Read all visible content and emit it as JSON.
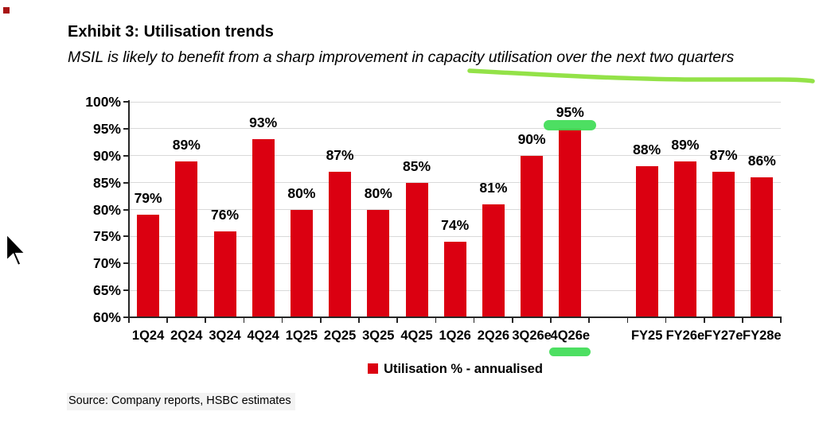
{
  "header": {
    "title": "Exhibit 3: Utilisation trends",
    "subtitle": "MSIL is likely to benefit from a sharp improvement in capacity utilisation over the next two quarters"
  },
  "chart_data": {
    "type": "bar",
    "title": "Exhibit 3: Utilisation trends",
    "subtitle": "MSIL is likely to benefit from a sharp improvement in capacity utilisation over the next two quarters",
    "categories": [
      "1Q24",
      "2Q24",
      "3Q24",
      "4Q24",
      "1Q25",
      "2Q25",
      "3Q25",
      "4Q25",
      "1Q26",
      "2Q26",
      "3Q26e",
      "4Q26e",
      "FY25",
      "FY26e",
      "FY27e",
      "FY28e"
    ],
    "values": [
      79,
      89,
      76,
      93,
      80,
      87,
      80,
      85,
      74,
      81,
      90,
      95,
      88,
      89,
      87,
      86
    ],
    "value_labels": [
      "79%",
      "89%",
      "76%",
      "93%",
      "80%",
      "87%",
      "80%",
      "85%",
      "74%",
      "81%",
      "90%",
      "95%",
      "88%",
      "89%",
      "87%",
      "86%"
    ],
    "gap_after_category": "4Q26e",
    "xlabel": "",
    "ylabel": "",
    "ylim": [
      60,
      100
    ],
    "ytick_values": [
      100,
      95,
      90,
      85,
      80,
      75,
      70,
      65,
      60
    ],
    "ytick_labels": [
      "100%",
      "95%",
      "90%",
      "85%",
      "80%",
      "75%",
      "70%",
      "65%",
      "60%"
    ],
    "grid": true,
    "bar_color": "#db0011",
    "legend": {
      "label": "Utilisation % - annualised",
      "swatch_color": "#db0011",
      "position": "bottom"
    },
    "annotations": [
      {
        "type": "marker-highlight",
        "shape": "rounded-bar",
        "target": "top of 4Q26e bar (95%)",
        "color": "#3edc55"
      },
      {
        "type": "marker-highlight",
        "shape": "rounded-underline",
        "target": "4Q26e x-axis label",
        "color": "#3edc55"
      },
      {
        "type": "hand-drawn-underline",
        "target": "capacity utilisation over the next two quarters",
        "color": "#8de03e"
      }
    ]
  },
  "footer": {
    "source": "Source: Company reports, HSBC estimates"
  },
  "icons": {
    "legend_swatch": "red-square",
    "cursor": "mouse-pointer"
  },
  "colors": {
    "bar_red": "#db0011",
    "marker_green": "#3edc55",
    "underline_green": "#8de03e",
    "grid_gray": "#d9d9d9",
    "axis_dark": "#262626",
    "corner_dot_red": "#a81414"
  }
}
